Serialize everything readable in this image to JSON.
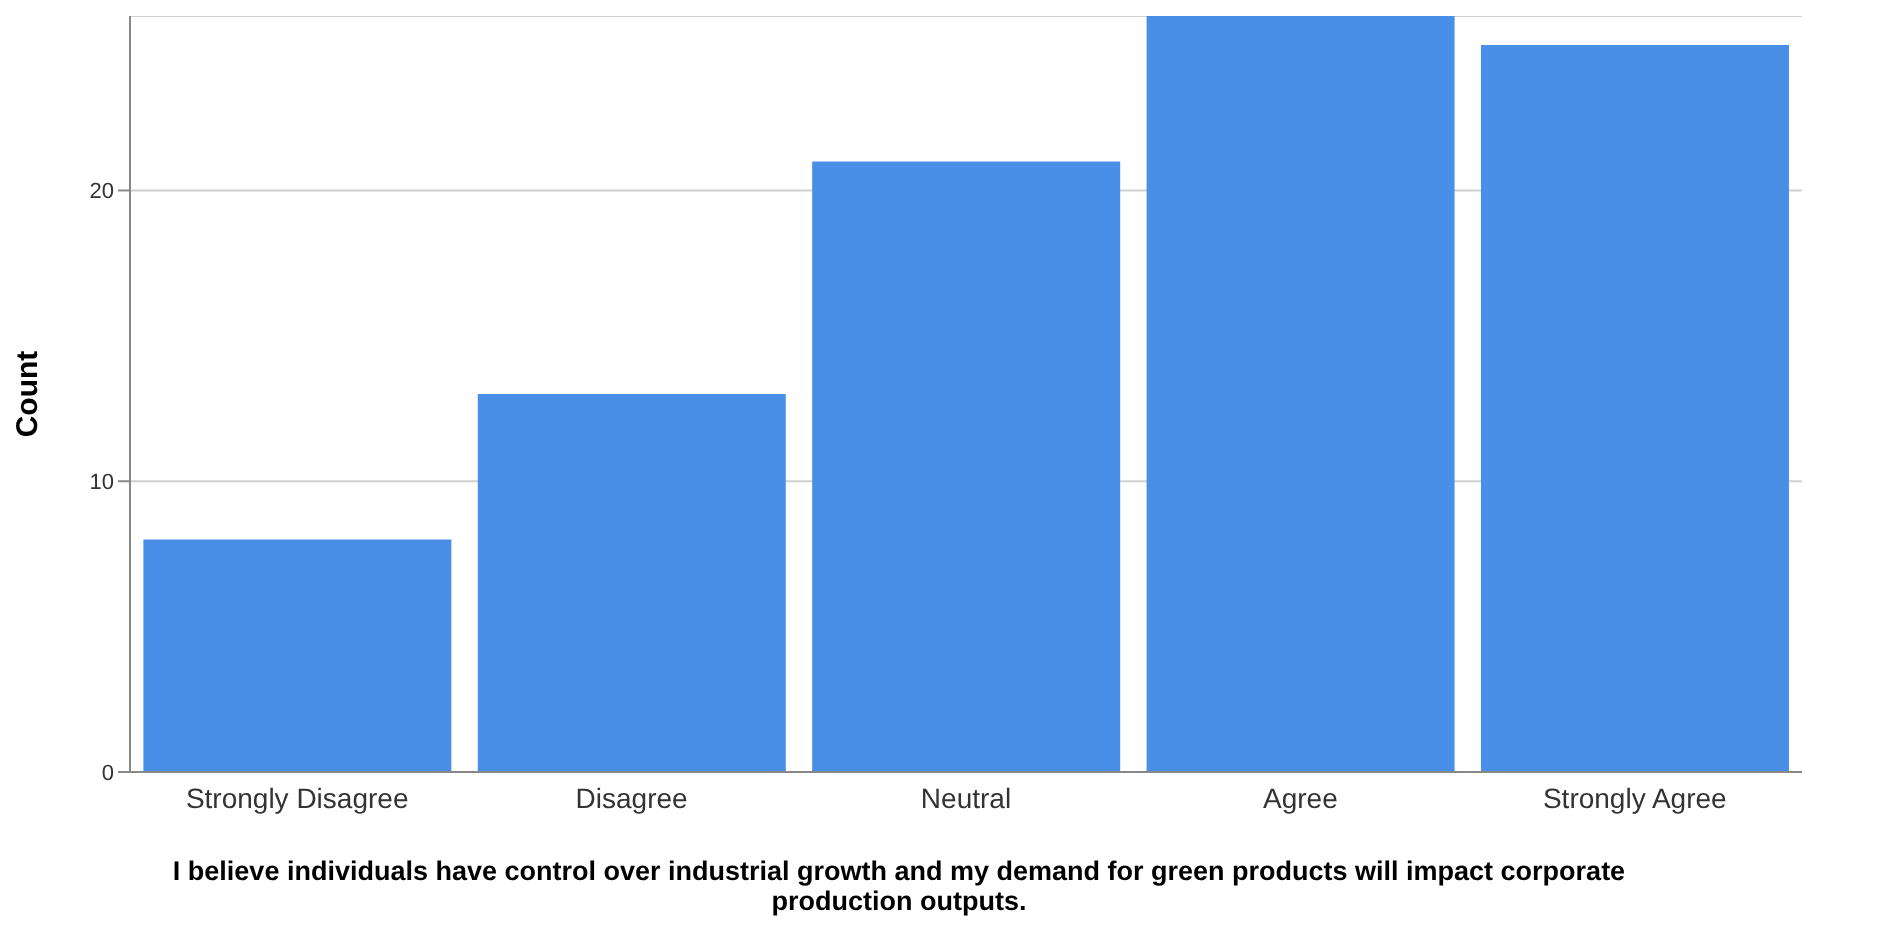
{
  "chart_data": {
    "type": "bar",
    "ylabel": "Count",
    "xlabel": "I believe individuals have control over industrial growth and my demand for green products will impact corporate production outputs.",
    "categories": [
      "Strongly Disagree",
      "Disagree",
      "Neutral",
      "Agree",
      "Strongly Agree"
    ],
    "values": [
      8,
      13,
      21,
      26,
      25
    ],
    "color": "#4a8fe7",
    "ylim": [
      0,
      26
    ],
    "yticks": [
      0,
      10,
      20
    ],
    "grid": "y"
  }
}
